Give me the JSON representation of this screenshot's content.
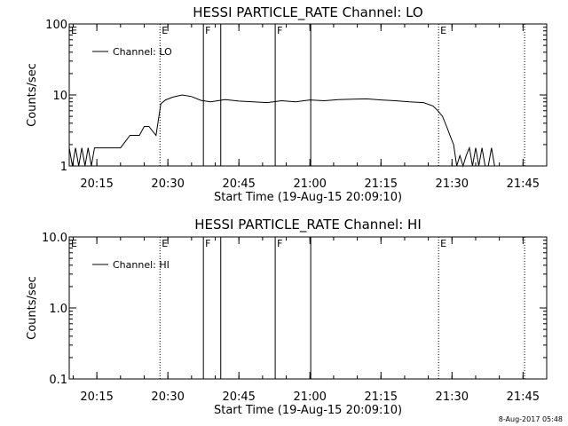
{
  "chart_data": [
    {
      "type": "line",
      "title": "HESSI PARTICLE_RATE Channel: LO",
      "xlabel": "Start Time (19-Aug-15 20:09:10)",
      "ylabel": "Counts/sec",
      "y_scale": "log",
      "ylim": [
        1,
        100
      ],
      "xlim": [
        "20:09:10",
        "21:50:00"
      ],
      "x_tick_labels": [
        "20:15",
        "20:30",
        "20:45",
        "21:00",
        "21:15",
        "21:30",
        "21:45"
      ],
      "y_tick_labels": [
        "1",
        "10",
        "100"
      ],
      "grid": false,
      "legend_position": "top-left",
      "series": [
        {
          "name": "Channel: LO",
          "x": [
            "20:09:10",
            "20:09:50",
            "20:10:30",
            "20:11:10",
            "20:11:50",
            "20:12:30",
            "20:13:10",
            "20:13:50",
            "20:14:30",
            "20:20:00",
            "20:22:00",
            "20:24:00",
            "20:25:00",
            "20:26:00",
            "20:27:30",
            "20:28:30",
            "20:29:30",
            "20:31:00",
            "20:33:00",
            "20:35:00",
            "20:37:00",
            "20:39:00",
            "20:42:00",
            "20:45:00",
            "20:48:00",
            "20:51:00",
            "20:54:00",
            "20:57:00",
            "21:00:00",
            "21:03:00",
            "21:06:00",
            "21:09:00",
            "21:12:00",
            "21:15:00",
            "21:18:00",
            "21:21:00",
            "21:24:00",
            "21:26:00",
            "21:27:00",
            "21:28:00",
            "21:29:00",
            "21:29:40",
            "21:30:20",
            "21:31:00",
            "21:31:40",
            "21:32:20",
            "21:33:00",
            "21:33:40",
            "21:34:20",
            "21:35:00",
            "21:35:40",
            "21:36:20",
            "21:37:00",
            "21:37:40",
            "21:38:20",
            "21:39:00",
            "21:39:40"
          ],
          "y": [
            1.8,
            1,
            1.8,
            1,
            1.8,
            1,
            1.8,
            1,
            1.8,
            1.8,
            2.7,
            2.7,
            3.6,
            3.6,
            2.7,
            7.5,
            8.5,
            9.3,
            10,
            9.5,
            8.4,
            8.0,
            8.6,
            8.2,
            8.0,
            7.8,
            8.3,
            8.0,
            8.5,
            8.3,
            8.6,
            8.7,
            8.8,
            8.5,
            8.3,
            8.0,
            7.8,
            7.0,
            6.0,
            5.0,
            3.4,
            2.6,
            2.0,
            1,
            1.4,
            1,
            1.4,
            1.8,
            1,
            1.8,
            1,
            1.8,
            1,
            1,
            1.8,
            1,
            1
          ]
        }
      ],
      "vertical_markers": [
        {
          "time": "20:28:20",
          "style": "dotted",
          "label": "E"
        },
        {
          "time": "20:37:30",
          "style": "solid",
          "label": "F"
        },
        {
          "time": "20:41:10",
          "style": "solid",
          "label": ""
        },
        {
          "time": "20:52:40",
          "style": "solid",
          "label": "F"
        },
        {
          "time": "21:00:10",
          "style": "solid",
          "label": ""
        },
        {
          "time": "21:27:10",
          "style": "dotted",
          "label": "E"
        },
        {
          "time": "21:45:20",
          "style": "dotted",
          "label": ""
        }
      ],
      "corner_labels": [
        "E"
      ]
    },
    {
      "type": "line",
      "title": "HESSI PARTICLE_RATE Channel: HI",
      "xlabel": "Start Time (19-Aug-15 20:09:10)",
      "ylabel": "Counts/sec",
      "y_scale": "log",
      "ylim": [
        0.1,
        10
      ],
      "xlim": [
        "20:09:10",
        "21:50:00"
      ],
      "x_tick_labels": [
        "20:15",
        "20:30",
        "20:45",
        "21:00",
        "21:15",
        "21:30",
        "21:45"
      ],
      "y_tick_labels": [
        "0.1",
        "1.0",
        "10.0"
      ],
      "grid": false,
      "legend_position": "top-left",
      "series": [
        {
          "name": "Channel: HI",
          "x": [],
          "y": []
        }
      ],
      "vertical_markers": [
        {
          "time": "20:28:20",
          "style": "dotted",
          "label": "E"
        },
        {
          "time": "20:37:30",
          "style": "solid",
          "label": "F"
        },
        {
          "time": "20:41:10",
          "style": "solid",
          "label": ""
        },
        {
          "time": "20:52:40",
          "style": "solid",
          "label": "F"
        },
        {
          "time": "21:00:10",
          "style": "solid",
          "label": ""
        },
        {
          "time": "21:27:10",
          "style": "dotted",
          "label": "E"
        },
        {
          "time": "21:45:20",
          "style": "dotted",
          "label": ""
        }
      ],
      "corner_labels": [
        "E"
      ]
    }
  ],
  "footer": {
    "timestamp": "8-Aug-2017 05:48"
  }
}
